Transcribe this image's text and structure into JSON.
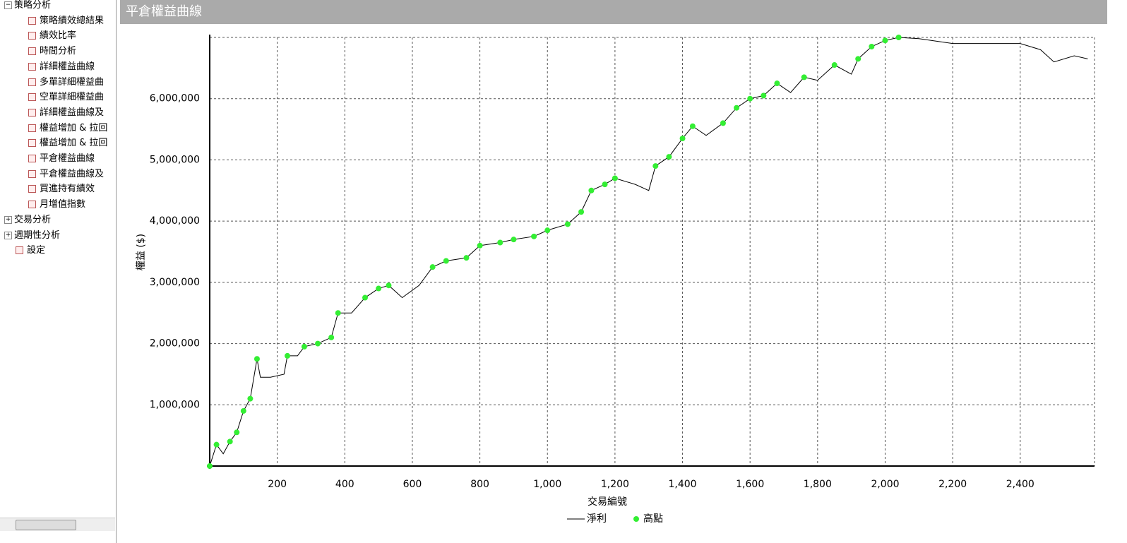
{
  "tree": [
    {
      "label": "策略分析",
      "children": [
        {
          "label": "策略績效總結果"
        },
        {
          "label": "績效比率"
        },
        {
          "label": "時間分析"
        },
        {
          "label": "詳細權益曲線"
        },
        {
          "label": "多單詳細權益曲"
        },
        {
          "label": "空單詳細權益曲"
        },
        {
          "label": "詳細權益曲線及"
        },
        {
          "label": "權益增加 & 拉回"
        },
        {
          "label": "權益增加 & 拉回"
        },
        {
          "label": "平倉權益曲線"
        },
        {
          "label": "平倉權益曲線及"
        },
        {
          "label": "買進持有績效"
        },
        {
          "label": "月增值指數"
        }
      ]
    },
    {
      "label": "交易分析"
    },
    {
      "label": "週期性分析"
    },
    {
      "label": "設定"
    }
  ],
  "chart_data": {
    "type": "line",
    "title": "平倉權益曲線",
    "x_label": "交易編號",
    "y_label": "權益 ($)",
    "xlim": [
      0,
      2620
    ],
    "ylim": [
      0,
      7000000
    ],
    "grid": true,
    "xticks": [
      200,
      400,
      600,
      800,
      {
        "value": 1000,
        "label": "1,000"
      },
      {
        "value": 1200,
        "label": "1,200"
      },
      {
        "value": 1400,
        "label": "1,400"
      },
      {
        "value": 1600,
        "label": "1,600"
      },
      {
        "value": 1800,
        "label": "1,800"
      },
      {
        "value": 2000,
        "label": "2,000"
      },
      {
        "value": 2200,
        "label": "2,200"
      },
      {
        "value": 2400,
        "label": "2,400"
      }
    ],
    "yticks": [
      {
        "value": 1000000,
        "label": "1,000,000"
      },
      {
        "value": 2000000,
        "label": "2,000,000"
      },
      {
        "value": 3000000,
        "label": "3,000,000"
      },
      {
        "value": 4000000,
        "label": "4,000,000"
      },
      {
        "value": 5000000,
        "label": "5,000,000"
      },
      {
        "value": 6000000,
        "label": "6,000,000"
      }
    ],
    "series": [
      {
        "name": "淨利",
        "type": "line",
        "color": "#000000",
        "x": [
          0,
          20,
          40,
          60,
          80,
          100,
          120,
          140,
          150,
          180,
          220,
          230,
          260,
          280,
          320,
          360,
          380,
          420,
          460,
          500,
          530,
          570,
          620,
          660,
          700,
          760,
          800,
          860,
          900,
          960,
          1000,
          1060,
          1100,
          1130,
          1170,
          1200,
          1260,
          1300,
          1320,
          1360,
          1400,
          1430,
          1470,
          1520,
          1560,
          1600,
          1640,
          1680,
          1720,
          1760,
          1800,
          1850,
          1900,
          1920,
          1960,
          2000,
          2040,
          2100,
          2200,
          2300,
          2400,
          2460,
          2500,
          2560,
          2600
        ],
        "values": [
          0,
          350000,
          200000,
          400000,
          550000,
          900000,
          1100000,
          1750000,
          1450000,
          1450000,
          1500000,
          1800000,
          1800000,
          1950000,
          2000000,
          2100000,
          2500000,
          2500000,
          2750000,
          2900000,
          2950000,
          2750000,
          2950000,
          3250000,
          3350000,
          3400000,
          3600000,
          3650000,
          3700000,
          3750000,
          3850000,
          3950000,
          4150000,
          4500000,
          4600000,
          4700000,
          4600000,
          4500000,
          4900000,
          5050000,
          5350000,
          5550000,
          5400000,
          5600000,
          5850000,
          6000000,
          6050000,
          6250000,
          6100000,
          6350000,
          6300000,
          6550000,
          6400000,
          6650000,
          6850000,
          6950000,
          7000000,
          6980000,
          6900000,
          6900000,
          6900000,
          6800000,
          6600000,
          6700000,
          6650000
        ]
      },
      {
        "name": "高點",
        "type": "scatter",
        "color": "#33ee33",
        "x": [
          0,
          20,
          60,
          80,
          100,
          120,
          140,
          230,
          280,
          320,
          360,
          380,
          460,
          500,
          530,
          660,
          700,
          760,
          800,
          860,
          900,
          960,
          1000,
          1060,
          1100,
          1130,
          1170,
          1200,
          1320,
          1360,
          1400,
          1430,
          1520,
          1560,
          1600,
          1640,
          1680,
          1760,
          1850,
          1920,
          1960,
          2000,
          2040
        ],
        "values": [
          0,
          350000,
          400000,
          550000,
          900000,
          1100000,
          1750000,
          1800000,
          1950000,
          2000000,
          2100000,
          2500000,
          2750000,
          2900000,
          2950000,
          3250000,
          3350000,
          3400000,
          3600000,
          3650000,
          3700000,
          3750000,
          3850000,
          3950000,
          4150000,
          4500000,
          4600000,
          4700000,
          4900000,
          5050000,
          5350000,
          5550000,
          5600000,
          5850000,
          6000000,
          6050000,
          6250000,
          6350000,
          6550000,
          6650000,
          6850000,
          6950000,
          7000000
        ]
      }
    ]
  }
}
